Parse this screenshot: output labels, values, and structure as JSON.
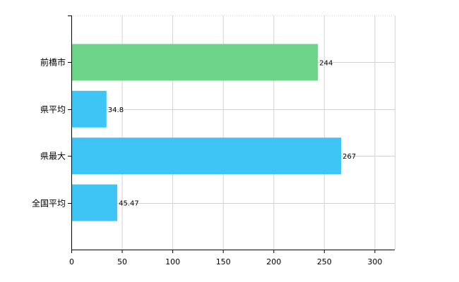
{
  "chart_data": {
    "type": "bar",
    "orientation": "horizontal",
    "categories": [
      "前橋市",
      "県平均",
      "県最大",
      "全国平均"
    ],
    "values": [
      244,
      34.8,
      267,
      45.47
    ],
    "value_labels": [
      "244",
      "34.8",
      "267",
      "45.47"
    ],
    "bar_colors": [
      "#6dd48a",
      "#3ec5f6",
      "#3ec5f6",
      "#3ec5f6"
    ],
    "xlim": [
      0,
      320
    ],
    "x_ticks": [
      0,
      50,
      100,
      150,
      200,
      250,
      300
    ],
    "grid": true,
    "grid_color": "#d3d3d3",
    "axis_color": "#000000",
    "title": "",
    "xlabel": "",
    "ylabel": ""
  }
}
